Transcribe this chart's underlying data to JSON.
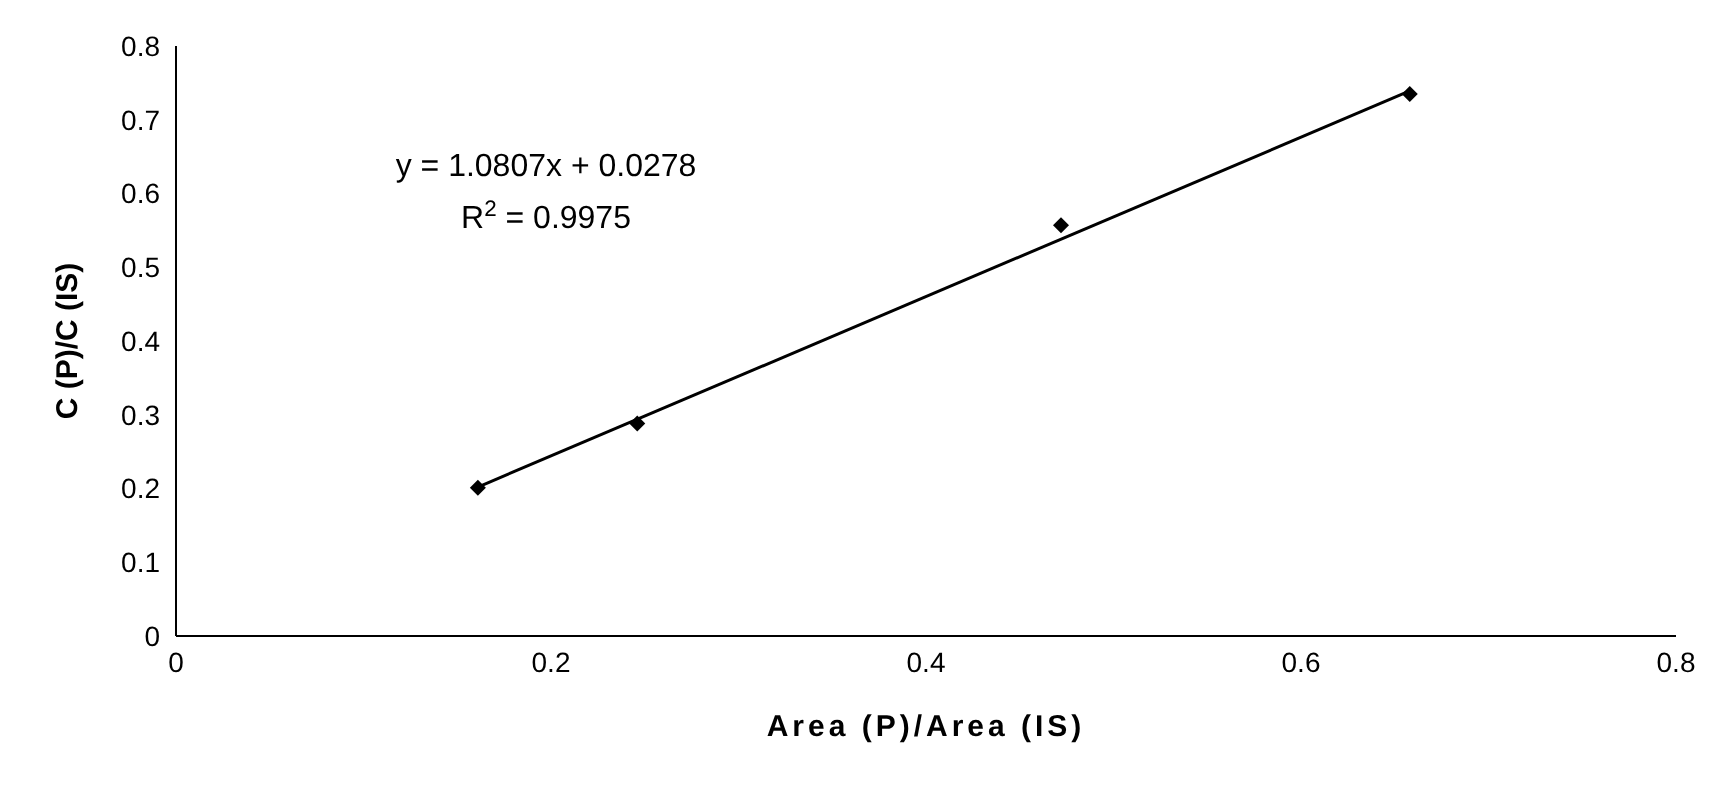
{
  "chart_data": {
    "type": "scatter",
    "xlabel": "Area (P)/Area (IS)",
    "ylabel": "C (P)/C (IS)",
    "xlim": [
      0,
      0.8
    ],
    "xticks": [
      0,
      0.2,
      0.4,
      0.6,
      0.8
    ],
    "ylim": [
      0,
      0.8
    ],
    "yticks": [
      0,
      0.1,
      0.2,
      0.3,
      0.4,
      0.5,
      0.6,
      0.7,
      0.8
    ],
    "grid": false,
    "legend": false,
    "marker": "diamond",
    "series": [
      {
        "color": "#000000",
        "x": [
          0.161,
          0.246,
          0.472,
          0.658
        ],
        "values": [
          0.201,
          0.288,
          0.557,
          0.735
        ]
      },
      {
        "type": "line",
        "color": "#000000",
        "x": [
          0.161,
          0.658
        ],
        "values": [
          0.202,
          0.739
        ],
        "marker": "none",
        "line_style": "solid"
      }
    ],
    "annotations": [
      "y = 1.0807x + 0.0278",
      "R$^{2}$ = 0.9975"
    ]
  }
}
